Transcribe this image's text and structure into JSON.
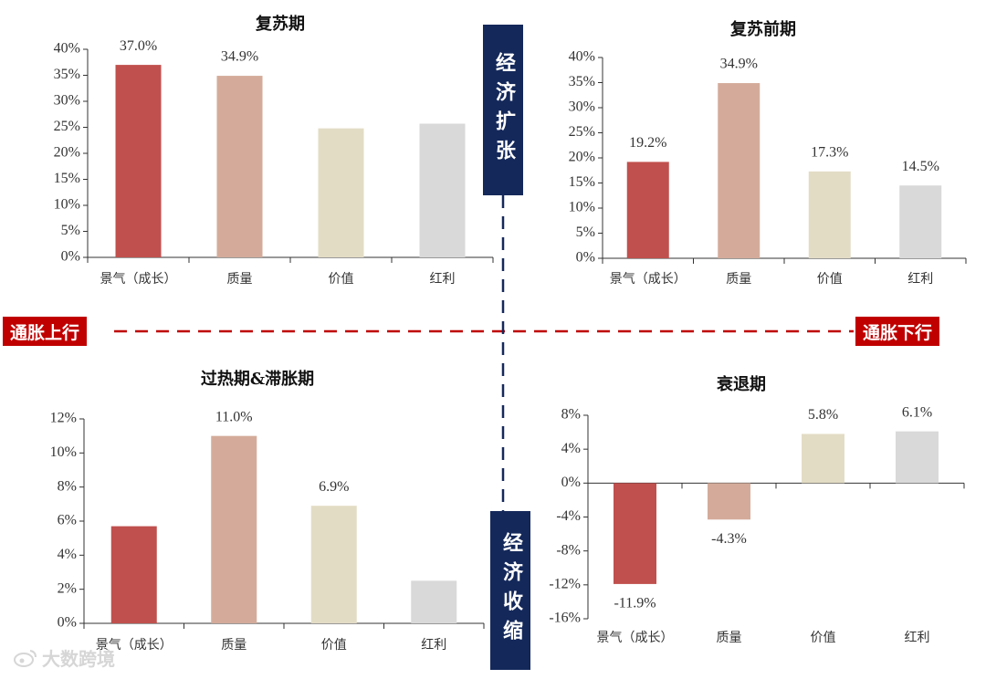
{
  "colors": {
    "growth": "#c0504d",
    "quality": "#d4ab9a",
    "value": "#e3dcc5",
    "dividend": "#d9d9d9",
    "axis_v": "#14285a",
    "axis_h": "#c00000"
  },
  "quadrant_axes": {
    "top": "经济扩张",
    "bottom": "经济收缩",
    "left": "通胀上行",
    "right": "通胀下行"
  },
  "watermark": {
    "icon": "weibo-icon",
    "text": "大数跨境"
  },
  "chart_data": [
    {
      "id": "recovery",
      "type": "bar",
      "title": "复苏期",
      "categories": [
        "景气（成长）",
        "质量",
        "价值",
        "红利"
      ],
      "values": [
        37.0,
        34.9,
        24.8,
        25.7
      ],
      "data_labels": [
        "37.0%",
        "34.9%",
        "",
        ""
      ],
      "ylim": [
        0,
        40
      ],
      "yticks": [
        "0%",
        "5%",
        "10%",
        "15%",
        "20%",
        "25%",
        "30%",
        "35%",
        "40%"
      ]
    },
    {
      "id": "early-recovery",
      "type": "bar",
      "title": "复苏前期",
      "categories": [
        "景气（成长）",
        "质量",
        "价值",
        "红利"
      ],
      "values": [
        19.2,
        34.9,
        17.3,
        14.5
      ],
      "data_labels": [
        "19.2%",
        "34.9%",
        "17.3%",
        "14.5%"
      ],
      "ylim": [
        0,
        40
      ],
      "yticks": [
        "0%",
        "5%",
        "10%",
        "15%",
        "20%",
        "25%",
        "30%",
        "35%",
        "40%"
      ]
    },
    {
      "id": "overheat-stagflation",
      "type": "bar",
      "title": "过热期&滞胀期",
      "categories": [
        "景气（成长）",
        "质量",
        "价值",
        "红利"
      ],
      "values": [
        5.7,
        11.0,
        6.9,
        2.5
      ],
      "data_labels": [
        "",
        "11.0%",
        "6.9%",
        ""
      ],
      "ylim": [
        0,
        12
      ],
      "yticks": [
        "0%",
        "2%",
        "4%",
        "6%",
        "8%",
        "10%",
        "12%"
      ]
    },
    {
      "id": "recession",
      "type": "bar",
      "title": "衰退期",
      "categories": [
        "景气（成长）",
        "质量",
        "价值",
        "红利"
      ],
      "values": [
        -11.9,
        -4.3,
        5.8,
        6.1
      ],
      "data_labels": [
        "-11.9%",
        "-4.3%",
        "5.8%",
        "6.1%"
      ],
      "ylim": [
        -16,
        8
      ],
      "yticks": [
        "-16%",
        "-12%",
        "-8%",
        "-4%",
        "0%",
        "4%",
        "8%"
      ]
    }
  ]
}
